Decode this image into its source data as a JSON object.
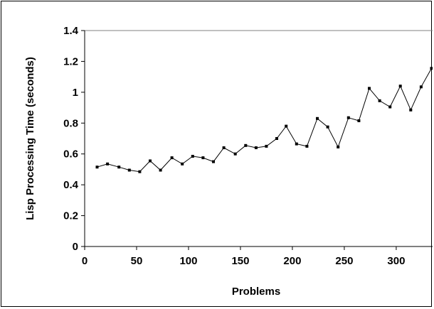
{
  "chart_data": {
    "type": "line",
    "title": "",
    "xlabel": "Problems",
    "ylabel": "Lisp Processing Time (seconds)",
    "xlim": [
      0,
      335
    ],
    "ylim": [
      0,
      1.4
    ],
    "xticks": [
      0,
      50,
      100,
      150,
      200,
      250,
      300
    ],
    "xtick_labels": [
      "0",
      "50",
      "100",
      "150",
      "200",
      "250",
      "300"
    ],
    "yticks": [
      0,
      0.2,
      0.4,
      0.6,
      0.8,
      1,
      1.2,
      1.4
    ],
    "ytick_labels": [
      "0",
      "0.2",
      "0.4",
      "0.6",
      "0.8",
      "1",
      "1.2",
      "1.4"
    ],
    "grid": false,
    "legend": "none",
    "line_color": "#000000",
    "marker_color": "#000000",
    "series": [
      {
        "x": [
          12,
          22,
          33,
          43,
          53,
          63,
          73,
          84,
          94,
          104,
          114,
          124,
          134,
          145,
          155,
          165,
          175,
          185,
          194,
          204,
          214,
          224,
          234,
          244,
          254,
          264,
          274,
          284,
          294,
          304,
          314,
          324,
          334
        ],
        "y": [
          0.515,
          0.535,
          0.515,
          0.495,
          0.485,
          0.555,
          0.495,
          0.575,
          0.535,
          0.585,
          0.575,
          0.55,
          0.64,
          0.6,
          0.655,
          0.64,
          0.65,
          0.7,
          0.78,
          0.665,
          0.65,
          0.83,
          0.775,
          0.645,
          0.835,
          0.815,
          1.025,
          0.945,
          0.905,
          1.04,
          0.885,
          1.035,
          1.155
        ]
      }
    ]
  }
}
